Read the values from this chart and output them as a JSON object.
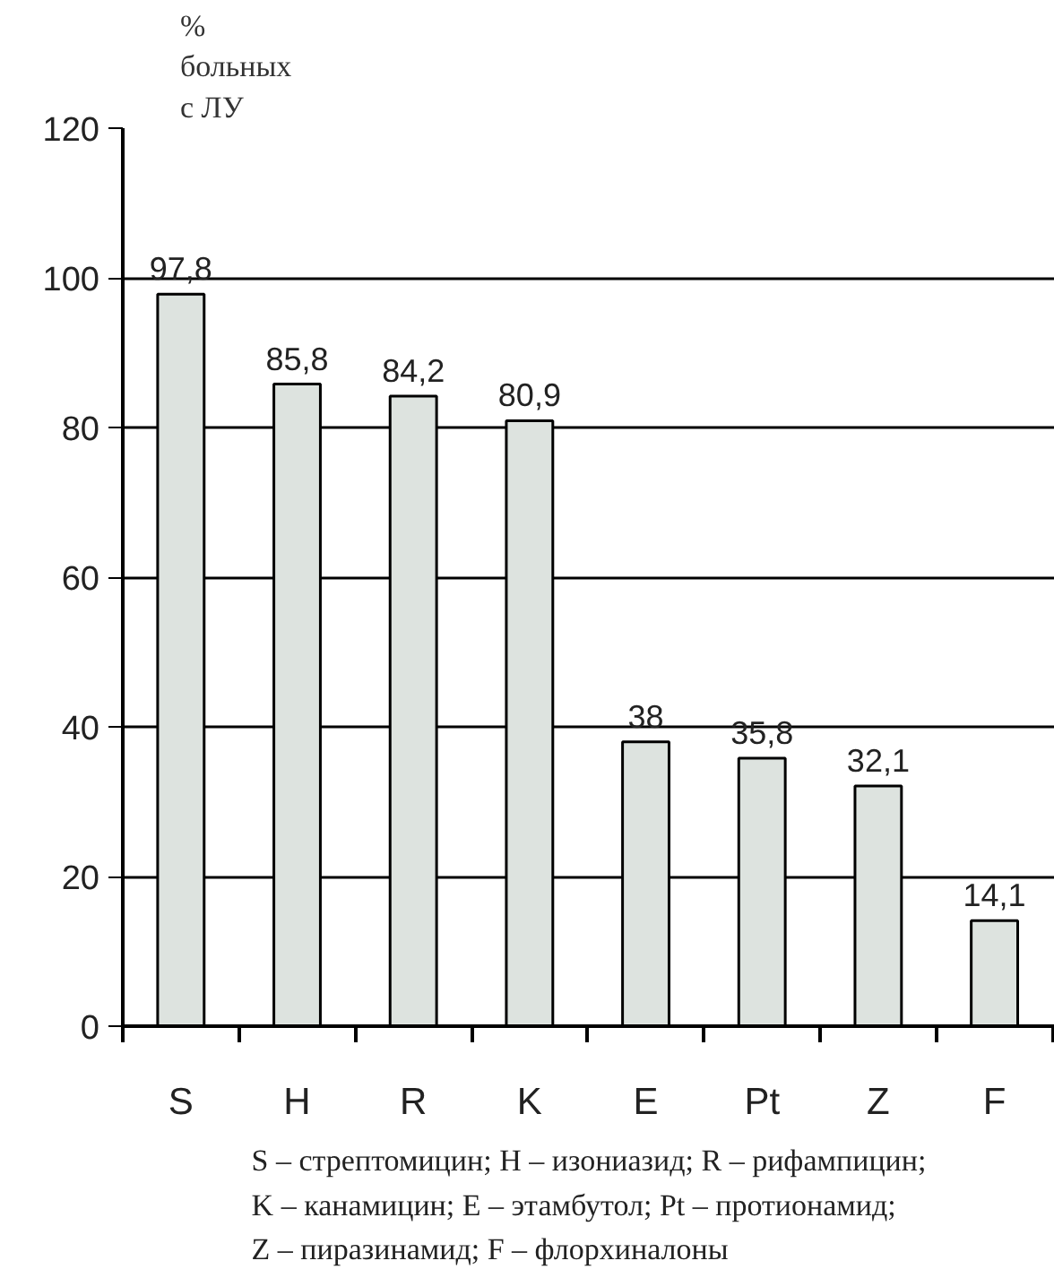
{
  "chart_data": {
    "type": "bar",
    "ylabel": "%\nбольных\nс ЛУ",
    "categories": [
      "S",
      "H",
      "R",
      "K",
      "E",
      "Pt",
      "Z",
      "F"
    ],
    "values": [
      97.8,
      85.8,
      84.2,
      80.9,
      38,
      35.8,
      32.1,
      14.1
    ],
    "value_labels": [
      "97,8",
      "85,8",
      "84,2",
      "80,9",
      "38",
      "35,8",
      "32,1",
      "14,1"
    ],
    "color": "#dde3df",
    "ylim": [
      0,
      120
    ],
    "yticks": [
      0,
      20,
      40,
      60,
      80,
      100,
      120
    ],
    "grid": "y",
    "annotations": [
      "S – стрептомицин; H – изониазид; R – рифампицин;\nK – канамицин; E – этамбутол; Pt – протионамид;\nZ – пиразинамид; F – флорхиналоны"
    ]
  }
}
